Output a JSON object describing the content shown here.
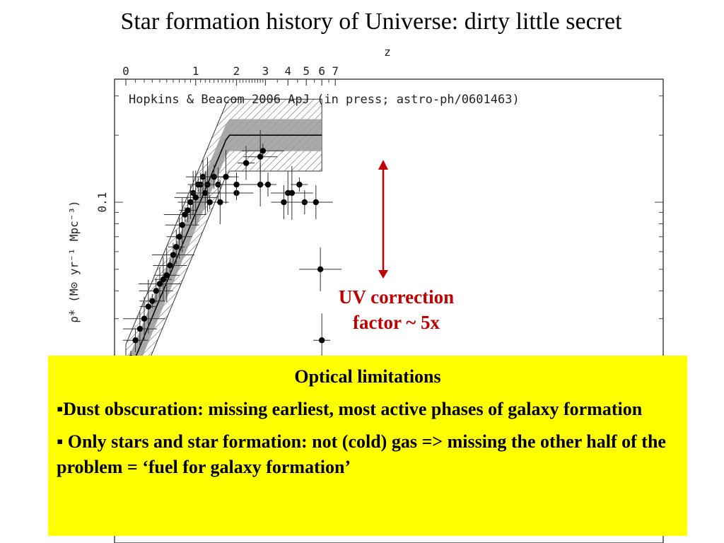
{
  "slide": {
    "title": "Star formation history of Universe: dirty little secret"
  },
  "annotation": {
    "line1": "UV correction",
    "line2": "factor ~ 5x",
    "arrow_color": "#c00000"
  },
  "callout": {
    "heading": "Optical limitations",
    "bullets": [
      "Dust obscuration: missing earliest, most active phases of galaxy formation",
      "Only stars and star formation: not (cold) gas => missing the other half of the problem = ‘fuel for galaxy formation’"
    ],
    "background": "#ffff00"
  },
  "chart_data": {
    "type": "scatter",
    "reference": "Hopkins & Beacom 2006 ApJ (in press; astro-ph/0601463)",
    "top_axis_label": "z",
    "top_ticks": [
      "0",
      "1",
      "2",
      "3",
      "4",
      "5",
      "6",
      "7"
    ],
    "ylabel": "ρ̇* (M⊙ yr⁻¹ Mpc⁻³)",
    "y_tick_labels": [
      "0.1"
    ],
    "ylog": true,
    "x": [
      0.05,
      0.1,
      0.15,
      0.2,
      0.25,
      0.3,
      0.35,
      0.4,
      0.45,
      0.5,
      0.55,
      0.6,
      0.65,
      0.7,
      0.75,
      0.8,
      0.85,
      0.9,
      0.95,
      1.0,
      1.05,
      1.1,
      1.15,
      1.2,
      1.25,
      1.3,
      1.4,
      1.5,
      1.55,
      1.7,
      2.0,
      2.0,
      2.3,
      2.8,
      2.8,
      2.9,
      3.1,
      3.8,
      4.0,
      4.2,
      4.6,
      4.9,
      5.6,
      5.9,
      6.0
    ],
    "y": [
      0.02,
      0.024,
      0.027,
      0.03,
      0.034,
      0.036,
      0.04,
      0.043,
      0.045,
      0.047,
      0.052,
      0.058,
      0.063,
      0.07,
      0.079,
      0.088,
      0.092,
      0.1,
      0.11,
      0.105,
      0.12,
      0.12,
      0.13,
      0.11,
      0.12,
      0.1,
      0.13,
      0.12,
      0.1,
      0.13,
      0.11,
      0.12,
      0.15,
      0.12,
      0.16,
      0.17,
      0.12,
      0.1,
      0.11,
      0.11,
      0.12,
      0.1,
      0.1,
      0.05,
      0.024
    ],
    "band_center_peak_z": 2.5,
    "annotation_text": "UV correction factor ~ 5x"
  }
}
